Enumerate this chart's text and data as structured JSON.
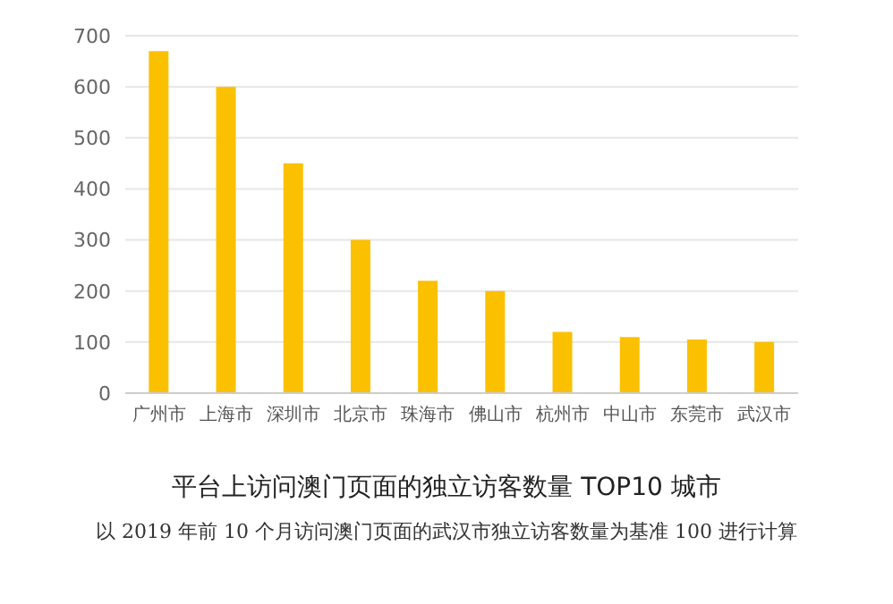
{
  "chart_data": {
    "type": "bar",
    "title": "平台上访问澳门页面的独立访客数量 TOP10 城市",
    "annotations": [
      "以 2019 年前 10 个月访问澳门页面的武汉市独立访客数量为基准 100 进行计算"
    ],
    "categories": [
      "广州市",
      "上海市",
      "深圳市",
      "北京市",
      "珠海市",
      "佛山市",
      "杭州市",
      "中山市",
      "东莞市",
      "武汉市"
    ],
    "values": [
      670,
      600,
      450,
      300,
      220,
      200,
      120,
      110,
      105,
      100
    ],
    "color": "#fbc000",
    "ylim": [
      0,
      700
    ],
    "yticks": [
      0,
      100,
      200,
      300,
      400,
      500,
      600,
      700
    ],
    "grid": "y"
  }
}
